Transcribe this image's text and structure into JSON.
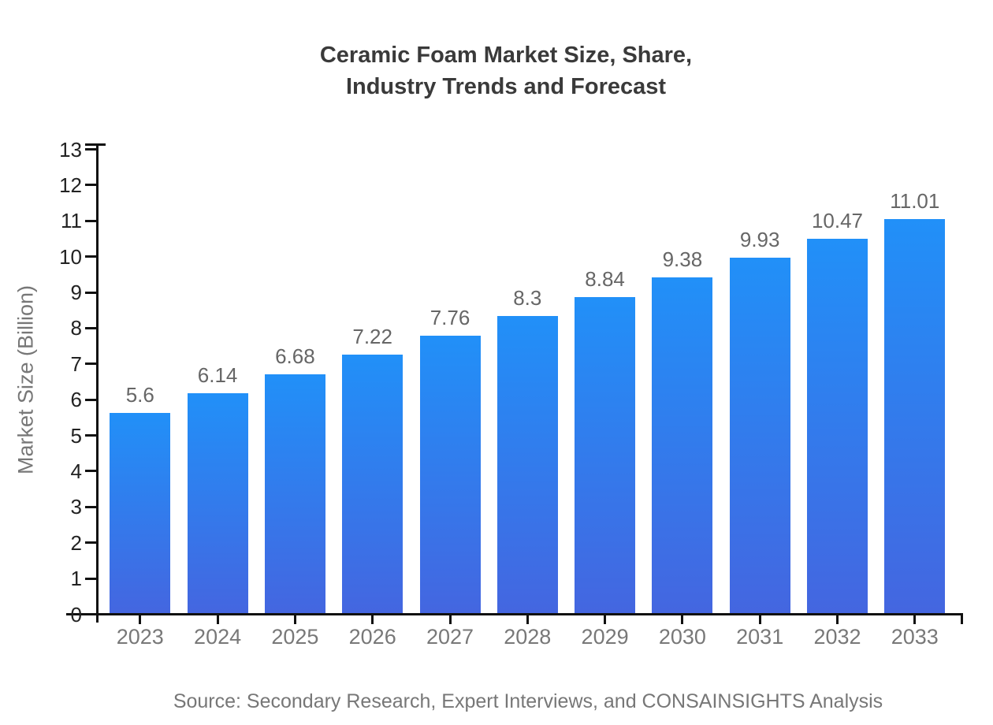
{
  "chart": {
    "title_lines": [
      "Ceramic Foam Market Size, Share,",
      "Industry Trends and Forecast"
    ],
    "y_axis_label": "Market Size (Billion)",
    "source": "Source: Secondary Research, Expert Interviews, and CONSAINSIGHTS Analysis"
  },
  "chart_data": {
    "type": "bar",
    "title": "Ceramic Foam Market Size, Share, Industry Trends and Forecast",
    "categories": [
      "2023",
      "2024",
      "2025",
      "2026",
      "2027",
      "2028",
      "2029",
      "2030",
      "2031",
      "2032",
      "2033"
    ],
    "values": [
      5.6,
      6.14,
      6.68,
      7.22,
      7.76,
      8.3,
      8.84,
      9.38,
      9.93,
      10.47,
      11.01
    ],
    "value_labels": [
      "5.6",
      "6.14",
      "6.68",
      "7.22",
      "7.76",
      "8.3",
      "8.84",
      "9.38",
      "9.93",
      "10.47",
      "11.01"
    ],
    "xlabel": "",
    "ylabel": "Market Size (Billion)",
    "ylim": [
      0,
      13
    ],
    "y_ticks": [
      0,
      1,
      2,
      3,
      4,
      5,
      6,
      7,
      8,
      9,
      10,
      11,
      12,
      13
    ],
    "grid": false,
    "legend": false,
    "source_note": "Source: Secondary Research, Expert Interviews, and CONSAINSIGHTS Analysis",
    "colors": {
      "bar_gradient_top": "#2190f8",
      "bar_gradient_bottom": "#4466e0",
      "axis_line": "#111111",
      "title_text": "#3a3a3a",
      "y_tick_text": "#222222",
      "x_tick_text": "#787878",
      "value_label_text": "#666666",
      "axis_title_text": "#777777",
      "source_text": "#777777",
      "background": "#ffffff"
    }
  }
}
